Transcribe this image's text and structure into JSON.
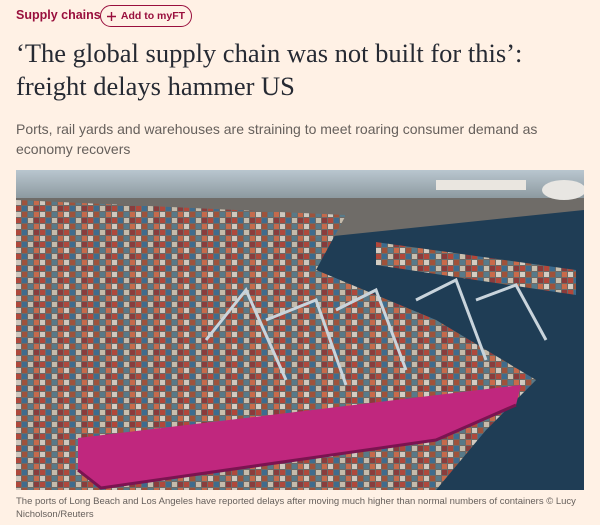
{
  "header": {
    "section": "Supply chains",
    "follow_button": "Add to myFT"
  },
  "article": {
    "headline": "‘The global supply chain was not built for this’: freight delays hammer US",
    "standfirst": "Ports, rail yards and warehouses are straining to meet roaring consumer demand as economy recovers",
    "caption": "The ports of Long Beach and Los Angeles have reported delays after moving much higher than normal numbers of containers © Lucy Nicholson/Reuters"
  }
}
